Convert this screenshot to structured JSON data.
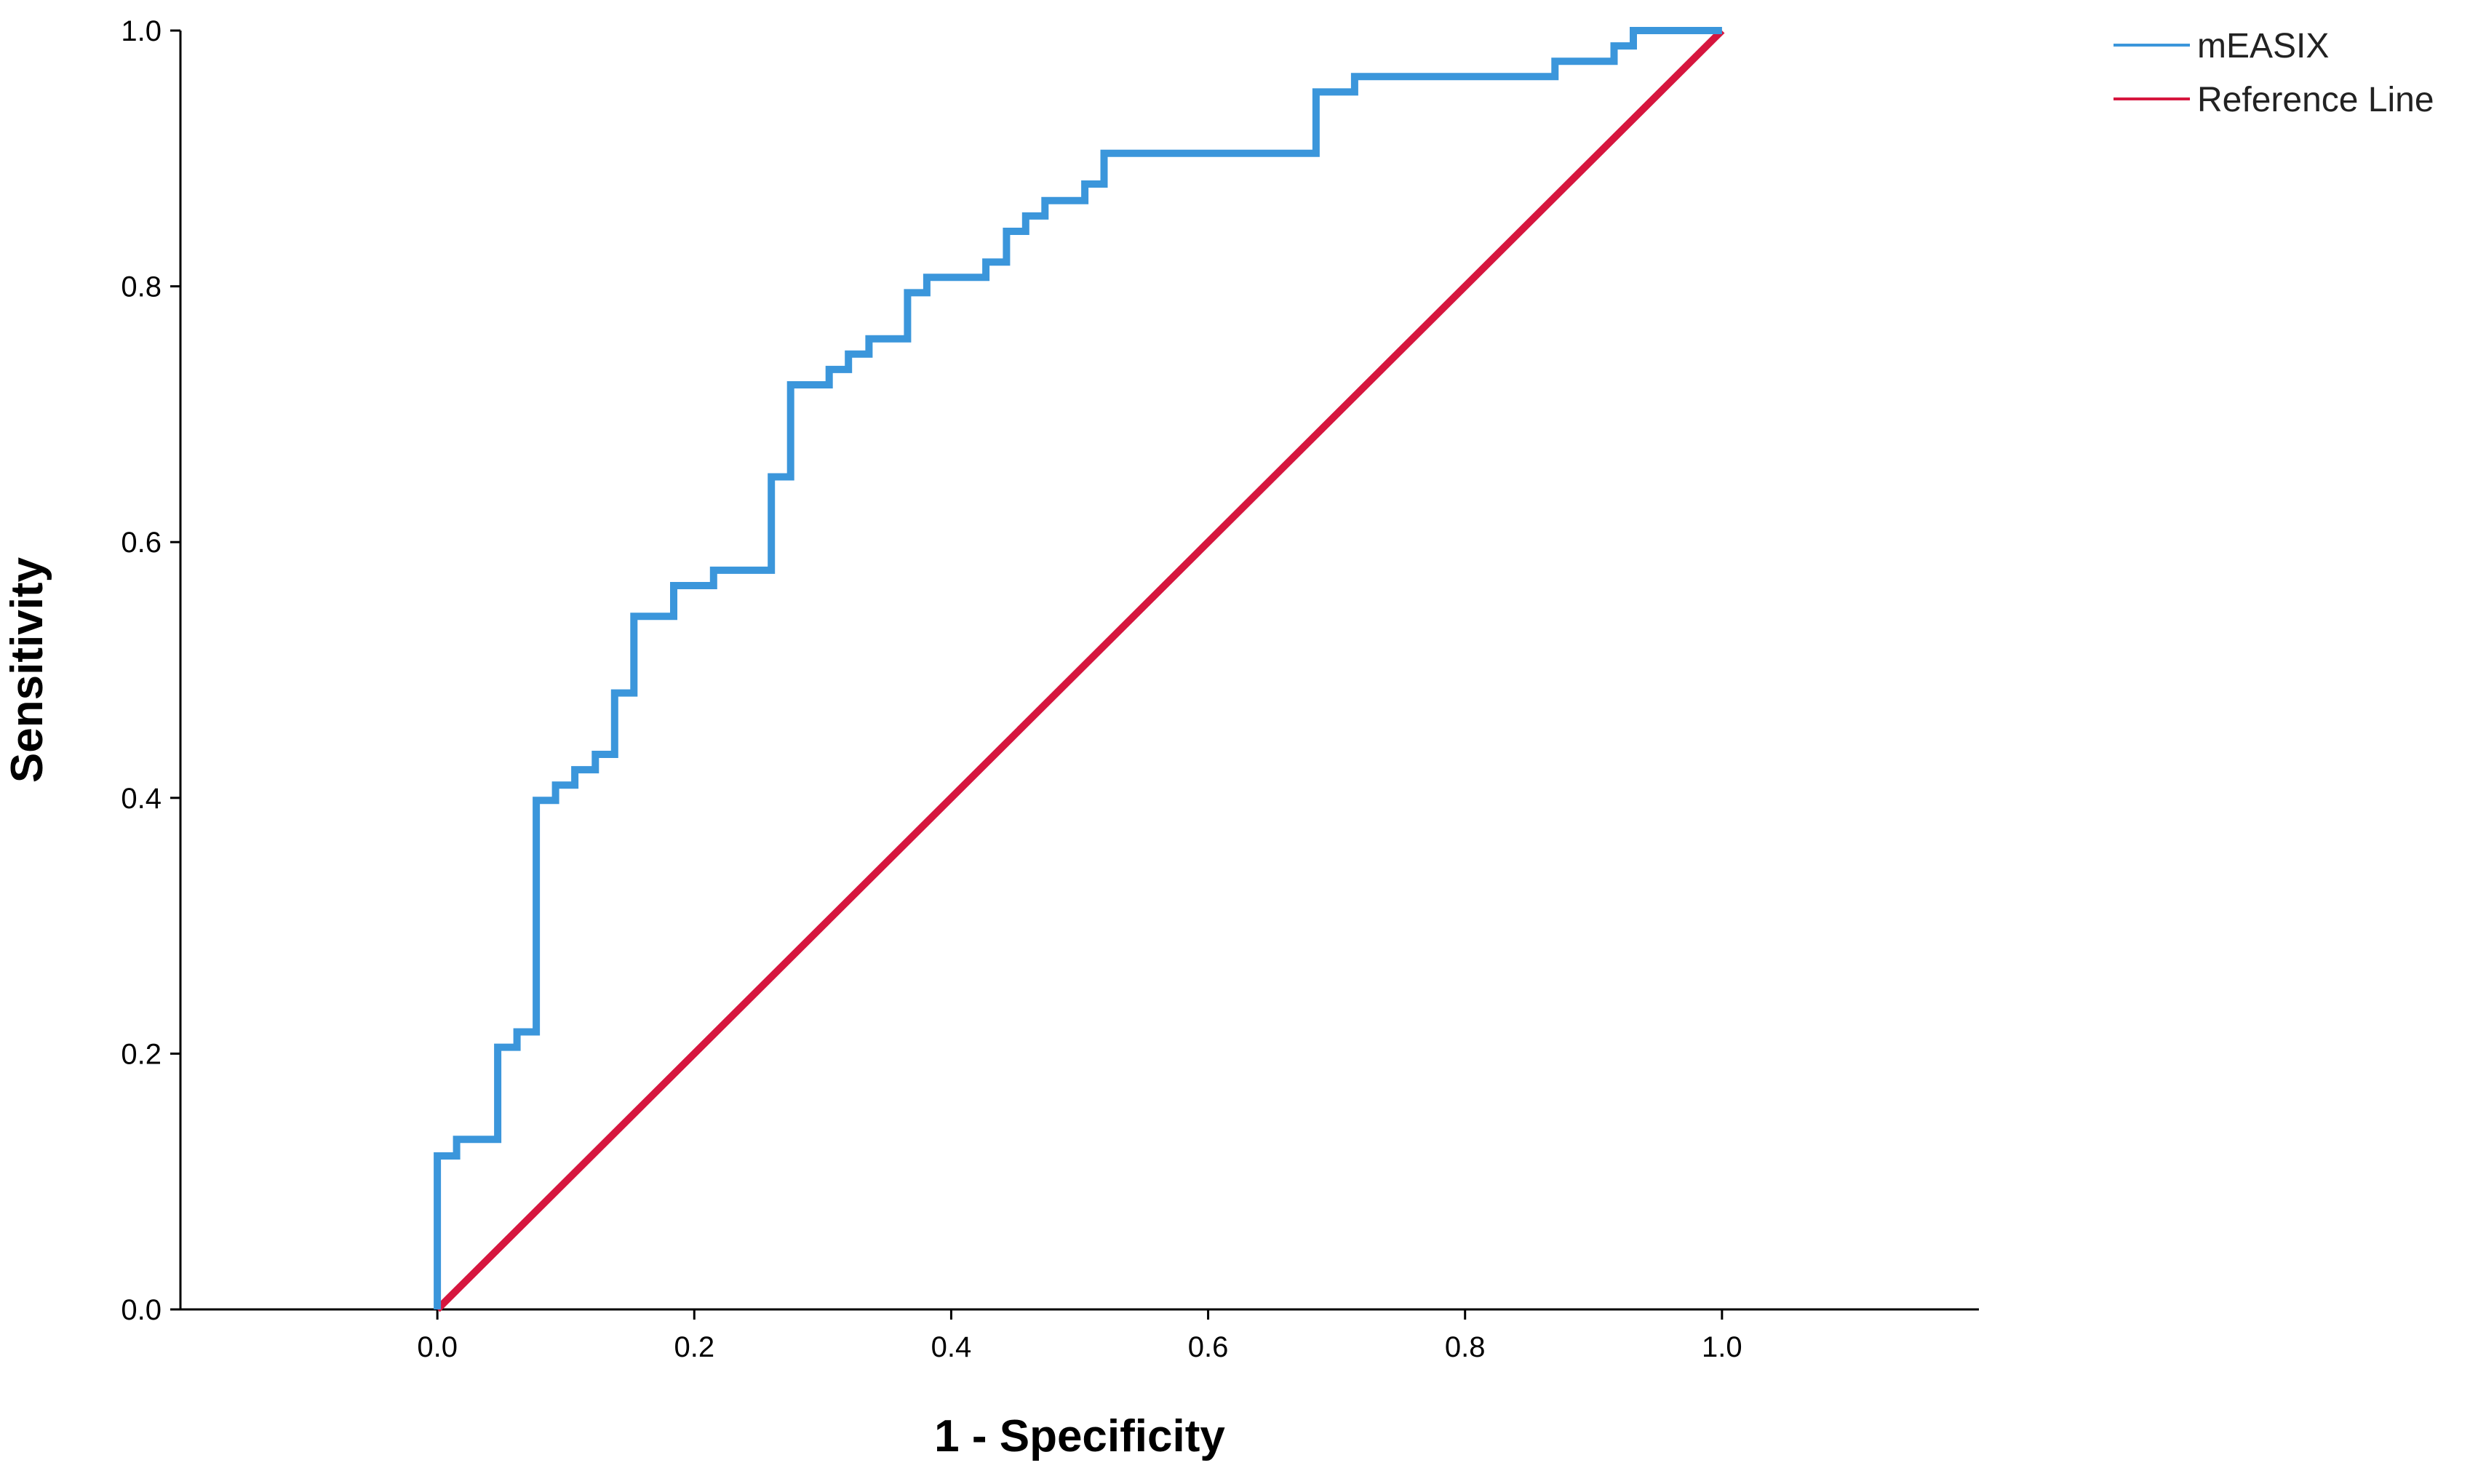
{
  "chart_data": {
    "type": "line",
    "title": "",
    "xlabel": "1 - Specificity",
    "ylabel": "Sensitivity",
    "xlim": [
      -0.2,
      1.2
    ],
    "ylim": [
      0,
      1
    ],
    "x_ticks": [
      "0.0",
      "0.2",
      "0.4",
      "0.6",
      "0.8",
      "1.0"
    ],
    "y_ticks": [
      "0.0",
      "0.2",
      "0.4",
      "0.6",
      "0.8",
      "1.0"
    ],
    "grid": false,
    "legend_position": "top-right",
    "series": [
      {
        "name": "mEASIX",
        "color": "#3b96db",
        "step": true,
        "points": [
          [
            0.0,
            0.0
          ],
          [
            0.0,
            0.12
          ],
          [
            0.015,
            0.12
          ],
          [
            0.015,
            0.133
          ],
          [
            0.047,
            0.133
          ],
          [
            0.047,
            0.205
          ],
          [
            0.062,
            0.205
          ],
          [
            0.062,
            0.217
          ],
          [
            0.077,
            0.217
          ],
          [
            0.077,
            0.398
          ],
          [
            0.092,
            0.398
          ],
          [
            0.092,
            0.41
          ],
          [
            0.107,
            0.41
          ],
          [
            0.107,
            0.422
          ],
          [
            0.123,
            0.422
          ],
          [
            0.123,
            0.434
          ],
          [
            0.138,
            0.434
          ],
          [
            0.138,
            0.482
          ],
          [
            0.153,
            0.482
          ],
          [
            0.153,
            0.542
          ],
          [
            0.184,
            0.542
          ],
          [
            0.184,
            0.566
          ],
          [
            0.215,
            0.566
          ],
          [
            0.215,
            0.578
          ],
          [
            0.26,
            0.578
          ],
          [
            0.26,
            0.651
          ],
          [
            0.275,
            0.651
          ],
          [
            0.275,
            0.723
          ],
          [
            0.305,
            0.723
          ],
          [
            0.305,
            0.735
          ],
          [
            0.32,
            0.735
          ],
          [
            0.32,
            0.747
          ],
          [
            0.336,
            0.747
          ],
          [
            0.336,
            0.759
          ],
          [
            0.366,
            0.759
          ],
          [
            0.366,
            0.795
          ],
          [
            0.381,
            0.795
          ],
          [
            0.381,
            0.807
          ],
          [
            0.427,
            0.807
          ],
          [
            0.427,
            0.819
          ],
          [
            0.443,
            0.819
          ],
          [
            0.443,
            0.843
          ],
          [
            0.458,
            0.843
          ],
          [
            0.458,
            0.855
          ],
          [
            0.473,
            0.855
          ],
          [
            0.473,
            0.867
          ],
          [
            0.504,
            0.867
          ],
          [
            0.504,
            0.88
          ],
          [
            0.519,
            0.88
          ],
          [
            0.519,
            0.904
          ],
          [
            0.684,
            0.904
          ],
          [
            0.684,
            0.952
          ],
          [
            0.714,
            0.952
          ],
          [
            0.714,
            0.964
          ],
          [
            0.87,
            0.964
          ],
          [
            0.87,
            0.976
          ],
          [
            0.916,
            0.976
          ],
          [
            0.916,
            0.988
          ],
          [
            0.931,
            0.988
          ],
          [
            0.931,
            1.0
          ],
          [
            1.0,
            1.0
          ]
        ]
      },
      {
        "name": "Reference Line",
        "color": "#d6163e",
        "step": false,
        "points": [
          [
            0.0,
            0.0
          ],
          [
            1.0,
            1.0
          ]
        ]
      }
    ]
  }
}
